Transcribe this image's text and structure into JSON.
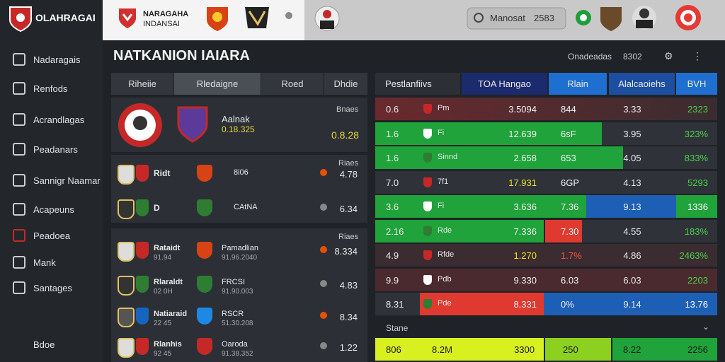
{
  "header": {
    "brand": "OLAHRAGAI",
    "league": [
      "NARAGAHA",
      "INDANSAI"
    ],
    "search": "Manosat",
    "search_code": "2583"
  },
  "sidebar": {
    "items": [
      "Nadaragais",
      "Renfods",
      "Acrandlagas",
      "Peadanars",
      "Sannigr Naamar",
      "Acapeuns",
      "Peadoea",
      "Mank",
      "Santages"
    ],
    "footer": "Bdoe"
  },
  "main": {
    "title": "NATKANION IAIARA",
    "toolbar": [
      "Onadeadas",
      "8302"
    ]
  },
  "left_panel": {
    "tabs": [
      "Riheiie",
      "Rledaigne",
      "Roed",
      "Dhdie"
    ],
    "featured": {
      "team": "Aalnak",
      "score": "0.18.325",
      "label": "Bnaes",
      "value": "0.8.28"
    },
    "groups": [
      {
        "label": "Riaes",
        "rows": [
          {
            "name": "Ridt",
            "team": "8i06",
            "value": "4.78"
          },
          {
            "name": "D",
            "team": "CAtNA",
            "value": "6.34"
          }
        ]
      },
      {
        "label": "Riaes",
        "rows": [
          {
            "name": "Rataidt",
            "sub": "91.94",
            "team": "Pamadlian",
            "date": "91.96.2040",
            "value": "8.334"
          },
          {
            "name": "Rlaraldt",
            "sub": "02 0H",
            "team": "FRCSI",
            "date": "91.90.003",
            "value": "4.83"
          },
          {
            "name": "Natiaraid",
            "sub": "22 45",
            "team": "RSCR",
            "date": "51.30.208",
            "value": "8.34"
          },
          {
            "name": "Rlanhis",
            "sub": "92 45",
            "team": "Oaroda",
            "date": "91.38.352",
            "value": "1.22"
          }
        ]
      }
    ]
  },
  "table": {
    "headers": [
      "Pestlanfiivs",
      "TOA Hangao",
      "Rlain",
      "Alalcaoiehs",
      "BVH"
    ],
    "rows": [
      {
        "rank": "0.6",
        "team": "Pm",
        "amount": "3.5094",
        "col3": "844",
        "col4": "3.33",
        "col5": "2323"
      },
      {
        "rank": "1.6",
        "team": "Fi",
        "amount": "12.639",
        "col3": "6sF",
        "col4": "3.95",
        "col5": "323%"
      },
      {
        "rank": "1.6",
        "team": "Sinnd",
        "amount": "2.658",
        "col3": "653",
        "col4": "4.05",
        "col5": "833%"
      },
      {
        "rank": "7.0",
        "team": "7f1",
        "amount": "17.931",
        "col3": "6GP",
        "col4": "4.13",
        "col5": "5293"
      },
      {
        "rank": "3.6",
        "team": "Fi",
        "amount": "3.636",
        "col3": "7.36",
        "col4": "9.13",
        "col5": "1336"
      },
      {
        "rank": "2.16",
        "team": "Rde",
        "amount": "7.336",
        "col3": "7.30",
        "col4": "4.55",
        "col5": "183%"
      },
      {
        "rank": "4.9",
        "team": "Rfde",
        "amount": "1.270",
        "col3": "1.7%",
        "col4": "4.86",
        "col5": "2463%"
      },
      {
        "rank": "9.9",
        "team": "Pdb",
        "amount": "9.330",
        "col3": "6.03",
        "col4": "6.03",
        "col5": "2203"
      },
      {
        "rank": "8.31",
        "team": "Pde",
        "amount": "8.331",
        "col3": "0%",
        "col4": "9.14",
        "col5": "13.76"
      }
    ],
    "footer": "Stane",
    "summary": [
      "806",
      "8.2M",
      "3300",
      "250",
      "8.22",
      "2256"
    ]
  }
}
